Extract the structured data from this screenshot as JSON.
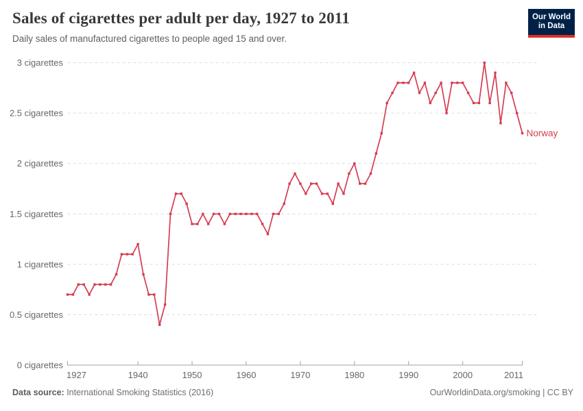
{
  "header": {
    "title": "Sales of cigarettes per adult per day, 1927 to 2011",
    "subtitle": "Daily sales of manufactured cigarettes to people aged 15 and over.",
    "logo": {
      "line1": "Our World",
      "line2": "in Data"
    }
  },
  "chart_data": {
    "type": "line",
    "title": "Sales of cigarettes per adult per day, 1927 to 2011",
    "xlabel": "",
    "ylabel": "cigarettes",
    "xlim": [
      1927,
      2011
    ],
    "ylim": [
      0,
      3
    ],
    "grid": "horizontal-dashed",
    "x_ticks": [
      1927,
      1940,
      1950,
      1960,
      1970,
      1980,
      1990,
      2000,
      2011
    ],
    "y_ticks": [
      {
        "value": 0,
        "label": "0 cigarettes"
      },
      {
        "value": 0.5,
        "label": "0.5 cigarettes"
      },
      {
        "value": 1,
        "label": "1 cigarettes"
      },
      {
        "value": 1.5,
        "label": "1.5 cigarettes"
      },
      {
        "value": 2,
        "label": "2 cigarettes"
      },
      {
        "value": 2.5,
        "label": "2.5 cigarettes"
      },
      {
        "value": 3,
        "label": "3 cigarettes"
      }
    ],
    "series": [
      {
        "name": "Norway",
        "color": "#d63c50",
        "x": [
          1927,
          1928,
          1929,
          1930,
          1931,
          1932,
          1933,
          1934,
          1935,
          1936,
          1937,
          1938,
          1939,
          1940,
          1941,
          1942,
          1943,
          1944,
          1945,
          1946,
          1947,
          1948,
          1949,
          1950,
          1951,
          1952,
          1953,
          1954,
          1955,
          1956,
          1957,
          1958,
          1959,
          1960,
          1961,
          1962,
          1963,
          1964,
          1965,
          1966,
          1967,
          1968,
          1969,
          1970,
          1971,
          1972,
          1973,
          1974,
          1975,
          1976,
          1977,
          1978,
          1979,
          1980,
          1981,
          1982,
          1983,
          1984,
          1985,
          1986,
          1987,
          1988,
          1989,
          1990,
          1991,
          1992,
          1993,
          1994,
          1995,
          1996,
          1997,
          1998,
          1999,
          2000,
          2001,
          2002,
          2003,
          2004,
          2005,
          2006,
          2007,
          2008,
          2009,
          2010,
          2011
        ],
        "values": [
          0.7,
          0.7,
          0.8,
          0.8,
          0.7,
          0.8,
          0.8,
          0.8,
          0.8,
          0.9,
          1.1,
          1.1,
          1.1,
          1.2,
          0.9,
          0.7,
          0.7,
          0.4,
          0.6,
          1.5,
          1.7,
          1.7,
          1.6,
          1.4,
          1.4,
          1.5,
          1.4,
          1.5,
          1.5,
          1.4,
          1.5,
          1.5,
          1.5,
          1.5,
          1.5,
          1.5,
          1.4,
          1.3,
          1.5,
          1.5,
          1.6,
          1.8,
          1.9,
          1.8,
          1.7,
          1.8,
          1.8,
          1.7,
          1.7,
          1.6,
          1.8,
          1.7,
          1.9,
          2.0,
          1.8,
          1.8,
          1.9,
          2.1,
          2.3,
          2.6,
          2.7,
          2.8,
          2.8,
          2.8,
          2.9,
          2.7,
          2.8,
          2.6,
          2.7,
          2.8,
          2.5,
          2.8,
          2.8,
          2.8,
          2.7,
          2.6,
          2.6,
          3.0,
          2.6,
          2.9,
          2.4,
          2.8,
          2.7,
          2.5,
          2.3
        ]
      }
    ],
    "legend_position": "end-of-line-label"
  },
  "footer": {
    "source_label": "Data source:",
    "source_text": " International Smoking Statistics (2016)",
    "credit": "OurWorldinData.org/smoking | CC BY"
  },
  "colors": {
    "series_red": "#d63c50",
    "gridline": "#dcdcdc",
    "axis": "#a3a3a3",
    "tick_text": "#666666",
    "logo_navy": "#002147",
    "logo_red": "#d93025"
  }
}
